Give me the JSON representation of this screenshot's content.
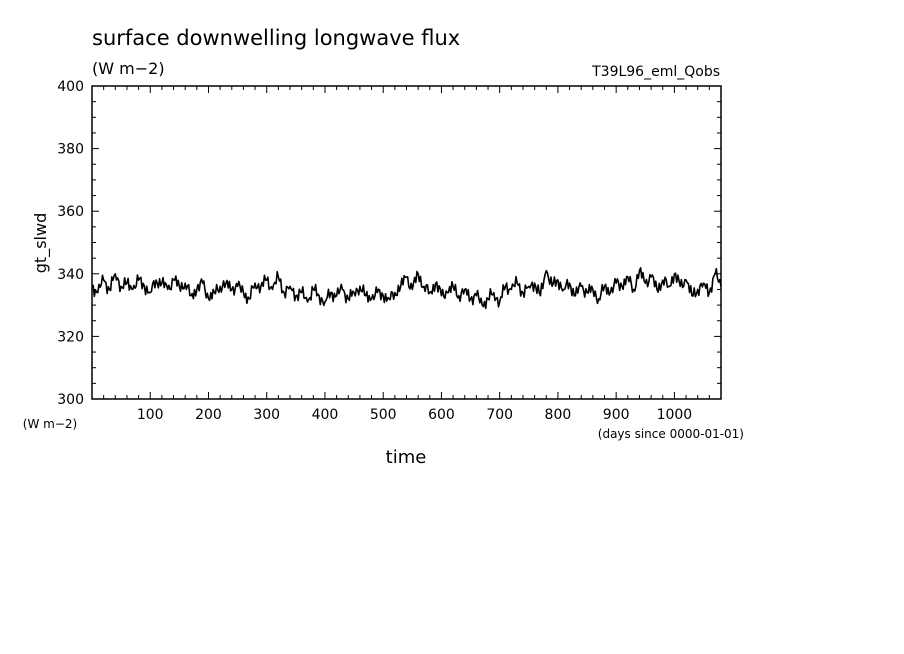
{
  "chart_data": {
    "type": "line",
    "title": "surface downwelling longwave flux",
    "subtitle": "(W m−2)",
    "annotation": "T39L96_eml_Qobs",
    "xlabel": "time",
    "xunits": "(days since 0000-01-01)",
    "ylabel": "gt_slwd",
    "yunits": "(W m−2)",
    "xlim": [
      0,
      1080
    ],
    "ylim": [
      300,
      400
    ],
    "xticks": [
      100,
      200,
      300,
      400,
      500,
      600,
      700,
      800,
      900,
      1000
    ],
    "xtick_labels": [
      "100",
      "200",
      "300",
      "400",
      "500",
      "600",
      "700",
      "800",
      "900",
      "1000"
    ],
    "yticks": [
      300,
      320,
      340,
      360,
      380,
      400
    ],
    "ytick_labels": [
      "300",
      "320",
      "340",
      "360",
      "380",
      "400"
    ],
    "grid": false,
    "line_color": "#000000",
    "series": [
      {
        "x": [
          0,
          10,
          20,
          30,
          40,
          50,
          60,
          70,
          80,
          90,
          100,
          110,
          120,
          130,
          140,
          150,
          160,
          170,
          180,
          190,
          200,
          210,
          220,
          230,
          240,
          250,
          260,
          270,
          280,
          290,
          300,
          310,
          320,
          330,
          340,
          350,
          360,
          370,
          380,
          390,
          400,
          410,
          420,
          430,
          440,
          450,
          460,
          470,
          480,
          490,
          500,
          510,
          520,
          530,
          540,
          550,
          560,
          570,
          580,
          590,
          600,
          610,
          620,
          630,
          640,
          650,
          660,
          670,
          680,
          690,
          700,
          710,
          720,
          730,
          740,
          750,
          760,
          770,
          780,
          790,
          800,
          810,
          820,
          830,
          840,
          850,
          860,
          870,
          880,
          890,
          900,
          910,
          920,
          930,
          940,
          950,
          960,
          970,
          980,
          990,
          1000,
          1010,
          1020,
          1030,
          1040,
          1050,
          1060,
          1070,
          1080
        ],
        "values": [
          336,
          334,
          338,
          335,
          340,
          336,
          337,
          335,
          338,
          336,
          334,
          338,
          337,
          335,
          338,
          336,
          337,
          333,
          335,
          337,
          332,
          334,
          336,
          337,
          335,
          336,
          334,
          332,
          337,
          336,
          338,
          335,
          339,
          334,
          336,
          333,
          334,
          331,
          335,
          333,
          331,
          334,
          333,
          335,
          332,
          334,
          336,
          333,
          332,
          334,
          333,
          332,
          334,
          336,
          339,
          335,
          340,
          336,
          334,
          337,
          333,
          334,
          336,
          333,
          335,
          332,
          333,
          330,
          332,
          334,
          331,
          336,
          335,
          337,
          334,
          336,
          337,
          333,
          341,
          336,
          338,
          335,
          337,
          333,
          336,
          334,
          335,
          332,
          336,
          334,
          337,
          336,
          339,
          335,
          341,
          337,
          339,
          335,
          338,
          336,
          340,
          336,
          338,
          333,
          335,
          337,
          334,
          340,
          336
        ]
      }
    ]
  }
}
